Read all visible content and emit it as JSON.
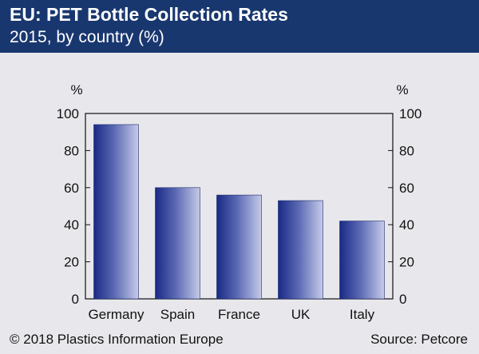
{
  "header": {
    "title": "EU: PET Bottle Collection Rates",
    "subtitle": "2015, by country (%)"
  },
  "footer": {
    "copyright": "© 2018 Plastics Information Europe",
    "source": "Source: Petcore"
  },
  "colors": {
    "header_bg": "#19376f",
    "background": "#e8e8ec",
    "bar_dark": "#1e2f8a",
    "bar_light": "#aab0d8"
  },
  "chart_data": {
    "type": "bar",
    "title": "EU: PET Bottle Collection Rates",
    "subtitle": "2015, by country (%)",
    "categories": [
      "Germany",
      "Spain",
      "France",
      "UK",
      "Italy"
    ],
    "values": [
      94,
      60,
      56,
      53,
      42
    ],
    "ylim": [
      0,
      100
    ],
    "yticks": [
      0,
      20,
      40,
      60,
      80,
      100
    ],
    "ylabel_left": "%",
    "ylabel_right": "%",
    "grid": false
  }
}
